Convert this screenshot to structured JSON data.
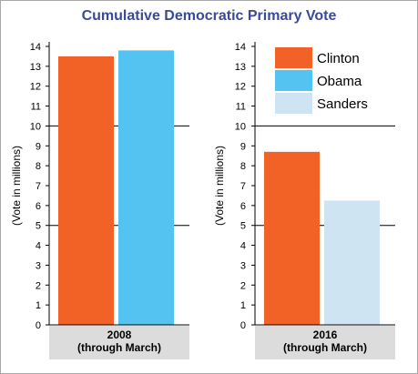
{
  "title": "Cumulative Democratic Primary Vote",
  "colors": {
    "title": "#3a4a9a",
    "clinton": "#f26126",
    "obama": "#55c3f1",
    "sanders": "#cfe4f3",
    "label_band": "#dcdcdc",
    "axis": "#000000",
    "frame": "#a8a8a8"
  },
  "legend": [
    {
      "name": "Clinton",
      "color": "#f26126"
    },
    {
      "name": "Obama",
      "color": "#55c3f1"
    },
    {
      "name": "Sanders",
      "color": "#cfe4f3"
    }
  ],
  "chart_data": [
    {
      "type": "bar",
      "categories": [
        "2008\n(through March)"
      ],
      "category_lines": [
        "2008",
        "(through March)"
      ],
      "series": [
        {
          "name": "Clinton",
          "values": [
            13.5
          ],
          "color": "#f26126"
        },
        {
          "name": "Obama",
          "values": [
            13.8
          ],
          "color": "#55c3f1"
        }
      ],
      "ylabel": "(Vote in millions)",
      "ylim": [
        0,
        14
      ],
      "yticks": [
        0,
        1,
        2,
        3,
        4,
        5,
        6,
        7,
        8,
        9,
        10,
        11,
        12,
        13,
        14
      ],
      "reference_lines": [
        5,
        10
      ],
      "legend": "none"
    },
    {
      "type": "bar",
      "categories": [
        "2016\n(through March)"
      ],
      "category_lines": [
        "2016",
        "(through March)"
      ],
      "series": [
        {
          "name": "Clinton",
          "values": [
            8.7
          ],
          "color": "#f26126"
        },
        {
          "name": "Sanders",
          "values": [
            6.25
          ],
          "color": "#cfe4f3"
        }
      ],
      "ylabel": "(Vote in millions)",
      "ylim": [
        0,
        14
      ],
      "yticks": [
        0,
        1,
        2,
        3,
        4,
        5,
        6,
        7,
        8,
        9,
        10,
        11,
        12,
        13,
        14
      ],
      "reference_lines": [
        5,
        10
      ],
      "legend": "top-right"
    }
  ]
}
